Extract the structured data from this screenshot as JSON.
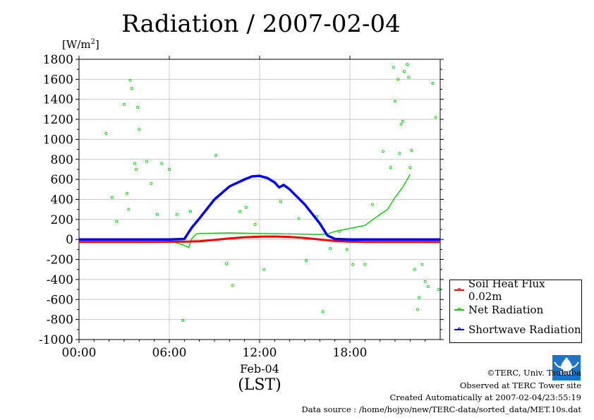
{
  "chart_data": {
    "type": "line",
    "title": "Radiation / 2007-02-04",
    "ylabel_unit": "[W/m",
    "ylabel_unit_sup": "2",
    "ylabel_unit_close": "]",
    "ylim": [
      -1000,
      1800
    ],
    "yticks": [
      -1000,
      -800,
      -600,
      -400,
      -200,
      0,
      200,
      400,
      600,
      800,
      1000,
      1200,
      1400,
      1600,
      1800
    ],
    "xlim": [
      0,
      24
    ],
    "xticks": [
      {
        "value": 0,
        "label": "00:00"
      },
      {
        "value": 6,
        "label": "06:00"
      },
      {
        "value": 12,
        "label": "12:00"
      },
      {
        "value": 18,
        "label": "18:00"
      }
    ],
    "xdate_label": "Feb-04",
    "xlabel": "(LST)",
    "grid": true,
    "legend_placement": "right",
    "series": [
      {
        "name": "Soil Heat Flux 0.02m",
        "color": "#ff0000",
        "x": [
          0,
          1,
          2,
          3,
          4,
          5,
          6,
          7,
          8,
          9,
          10,
          11,
          12,
          13,
          14,
          15,
          16,
          17,
          18,
          19,
          20,
          21,
          22,
          23,
          24
        ],
        "y": [
          -25,
          -25,
          -25,
          -25,
          -25,
          -25,
          -24,
          -22,
          -18,
          -5,
          10,
          22,
          28,
          30,
          25,
          15,
          0,
          -15,
          -22,
          -25,
          -25,
          -25,
          -25,
          -25,
          -25
        ]
      },
      {
        "name": "Net Radiation",
        "color": "#00cc00",
        "x": [
          0,
          2,
          4,
          6,
          7,
          7.3,
          7.5,
          7.8,
          8,
          10,
          12,
          14,
          16,
          16.5,
          17,
          18,
          19,
          20,
          20.5,
          21,
          21.5,
          22
        ],
        "y": [
          0,
          0,
          0,
          -10,
          -60,
          -80,
          10,
          55,
          60,
          65,
          60,
          55,
          50,
          55,
          80,
          110,
          140,
          250,
          300,
          420,
          520,
          650
        ]
      },
      {
        "name": "Shortwave Radiation",
        "color": "#0000ff",
        "x": [
          0,
          1,
          2,
          3,
          4,
          5,
          6,
          7,
          7.5,
          8,
          9,
          10,
          11,
          11.5,
          12,
          12.5,
          13,
          13.3,
          13.6,
          14,
          15,
          16,
          16.5,
          17,
          18,
          19,
          20,
          21,
          22,
          23,
          24
        ],
        "y": [
          0,
          0,
          0,
          0,
          0,
          0,
          0,
          5,
          120,
          210,
          400,
          530,
          600,
          630,
          635,
          615,
          570,
          520,
          545,
          500,
          350,
          160,
          40,
          5,
          0,
          0,
          0,
          0,
          0,
          0,
          0
        ]
      }
    ],
    "scatter": {
      "color": "#00cc00",
      "x": [
        1.8,
        2.2,
        2.5,
        3.0,
        3.2,
        3.3,
        3.4,
        3.5,
        3.7,
        3.8,
        3.9,
        4.0,
        4.5,
        4.8,
        5.2,
        5.5,
        6.0,
        6.5,
        6.9,
        7.4,
        9.1,
        9.8,
        10.2,
        10.7,
        11.1,
        11.7,
        12.3,
        13.4,
        14.6,
        15.1,
        15.8,
        16.2,
        16.7,
        17.3,
        17.8,
        18.2,
        19.0,
        19.5,
        20.2,
        20.7,
        21.0,
        21.2,
        21.4,
        21.6,
        21.8,
        22.0,
        22.1,
        22.3,
        22.5,
        22.8,
        23.0,
        23.2,
        23.5,
        23.7,
        23.9,
        21.5,
        21.9,
        22.6,
        20.9,
        21.3
      ],
      "y": [
        1060,
        420,
        180,
        1350,
        460,
        300,
        1590,
        1510,
        760,
        700,
        1320,
        1100,
        780,
        560,
        250,
        760,
        700,
        250,
        -810,
        280,
        840,
        -240,
        -460,
        280,
        320,
        150,
        -300,
        380,
        210,
        -210,
        230,
        -720,
        -90,
        80,
        -100,
        -250,
        -250,
        350,
        880,
        720,
        1380,
        1600,
        1150,
        1680,
        1750,
        720,
        890,
        -300,
        -700,
        -250,
        -420,
        -470,
        1560,
        1220,
        -500,
        1180,
        1620,
        -580,
        1720,
        860
      ]
    }
  },
  "legend": [
    {
      "label": "Soil Heat Flux 0.02m",
      "color": "#ff0000"
    },
    {
      "label": "Net Radiation",
      "color": "#00cc00"
    },
    {
      "label": "Shortwave Radiation",
      "color": "#0000ff"
    }
  ],
  "footer": {
    "copyright": "©TERC, Univ. Tsukuba",
    "observed": "Observed at TERC Tower site",
    "created": "Created Automatically at 2007-02-04/23:55:19",
    "source": "Data source : /home/hojyo/new/TERC-data/sorted_data/MET.10s.dat",
    "logo_text": "TERC",
    "logo_color": "#1e73c8"
  }
}
